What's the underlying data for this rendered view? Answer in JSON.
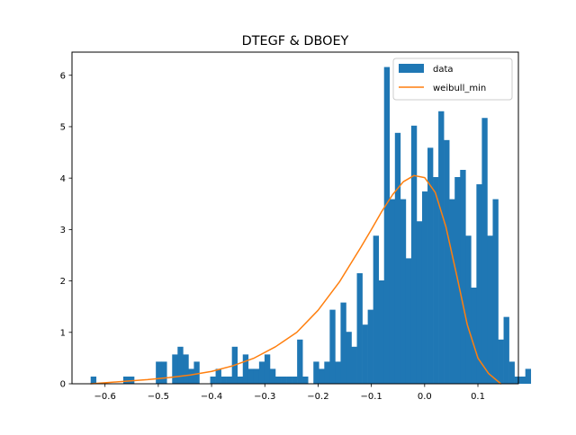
{
  "chart_data": {
    "type": "bar",
    "title": "DTEGF & DBOEY",
    "xlabel": "",
    "ylabel": "",
    "xlim": [
      -0.662,
      0.176
    ],
    "ylim": [
      0,
      6.45
    ],
    "xticks": [
      -0.6,
      -0.5,
      -0.4,
      -0.3,
      -0.2,
      -0.1,
      0.0,
      0.1
    ],
    "xtick_labels": [
      "−0.6",
      "−0.5",
      "−0.4",
      "−0.3",
      "−0.2",
      "−0.1",
      "0.0",
      "0.1"
    ],
    "yticks": [
      0,
      1,
      2,
      3,
      4,
      5,
      6
    ],
    "ytick_labels": [
      "0",
      "1",
      "2",
      "3",
      "4",
      "5",
      "6"
    ],
    "grid": false,
    "legend_position": "top-right",
    "legend": [
      {
        "label": "data",
        "kind": "patch",
        "color": "#1f77b4"
      },
      {
        "label": "weibull_min",
        "kind": "line",
        "color": "#ff7f0e"
      }
    ],
    "histogram": {
      "name": "data",
      "color": "#1f77b4",
      "bin_start": -0.627,
      "bin_width": 0.0102,
      "heights": [
        0.14,
        0,
        0,
        0,
        0,
        0,
        0.14,
        0.14,
        0,
        0,
        0,
        0,
        0.43,
        0.43,
        0,
        0.57,
        0.72,
        0.57,
        0.29,
        0.43,
        0,
        0,
        0.14,
        0.29,
        0.14,
        0.14,
        0.72,
        0.14,
        0.57,
        0.29,
        0.29,
        0.43,
        0.57,
        0.29,
        0.14,
        0.14,
        0.14,
        0.14,
        0.86,
        0.14,
        0,
        0.43,
        0.29,
        0.43,
        1.44,
        0.43,
        1.58,
        1.01,
        0.72,
        2.15,
        1.15,
        1.44,
        2.88,
        2.01,
        6.16,
        3.59,
        4.88,
        3.59,
        2.44,
        5.02,
        3.16,
        3.74,
        4.59,
        4.02,
        5.3,
        4.74,
        3.59,
        4.02,
        4.16,
        2.88,
        1.87,
        3.88,
        5.17,
        2.88,
        3.59,
        0.86,
        1.3,
        0.43,
        0.14,
        0.14,
        0.29
      ]
    },
    "series": [
      {
        "name": "weibull_min",
        "color": "#ff7f0e",
        "x": [
          -0.627,
          -0.6,
          -0.56,
          -0.52,
          -0.48,
          -0.44,
          -0.4,
          -0.36,
          -0.32,
          -0.28,
          -0.24,
          -0.2,
          -0.16,
          -0.12,
          -0.1,
          -0.08,
          -0.06,
          -0.04,
          -0.02,
          0.0,
          0.02,
          0.04,
          0.06,
          0.08,
          0.1,
          0.12,
          0.143
        ],
        "y": [
          0.0,
          0.02,
          0.05,
          0.08,
          0.12,
          0.17,
          0.24,
          0.35,
          0.5,
          0.72,
          1.0,
          1.43,
          1.98,
          2.65,
          3.0,
          3.36,
          3.68,
          3.93,
          4.05,
          4.01,
          3.72,
          3.05,
          2.12,
          1.15,
          0.5,
          0.2,
          0.0
        ]
      }
    ]
  }
}
